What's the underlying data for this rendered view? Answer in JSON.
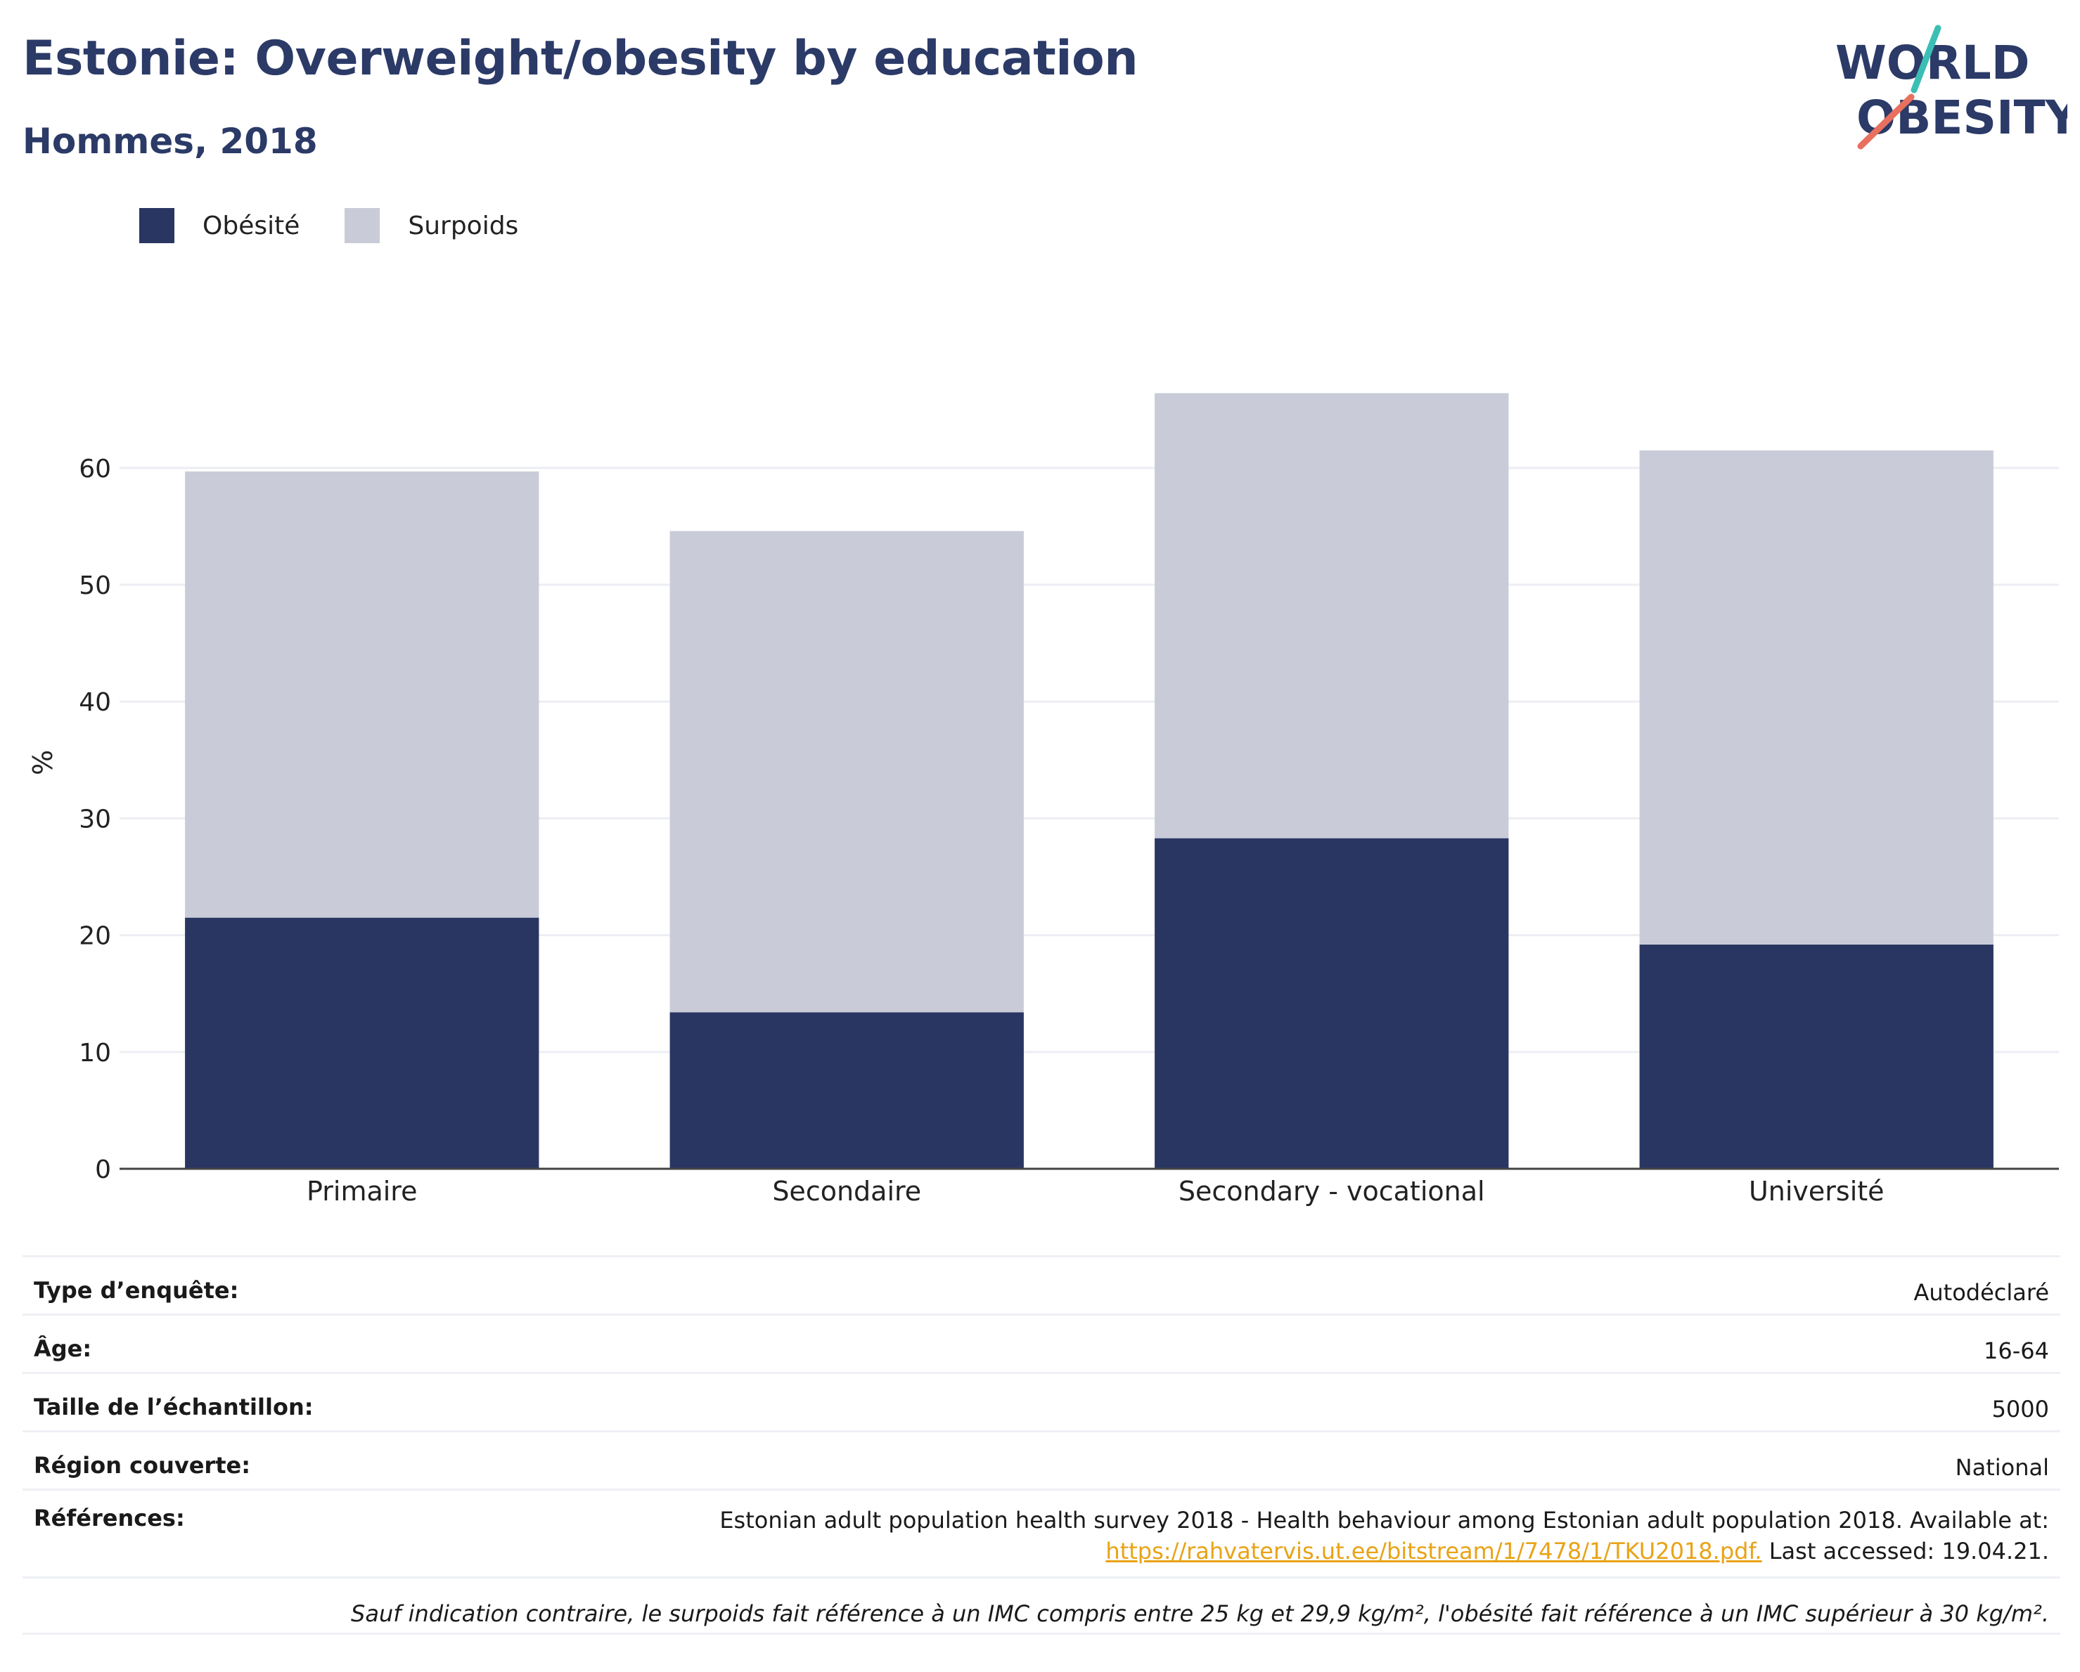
{
  "header": {
    "title": "Estonie: Overweight/obesity by education",
    "subtitle": "Hommes, 2018"
  },
  "logo": {
    "line1": "WORLD",
    "line2": "OBESITY"
  },
  "colors": {
    "obesity": "#2a3662",
    "overweight": "#c9ccd8",
    "title": "#2b3a67",
    "link": "#e8a317"
  },
  "chart_data": {
    "type": "bar",
    "stacked": true,
    "categories": [
      "Primaire",
      "Secondaire",
      "Secondary - vocational",
      "Université"
    ],
    "series": [
      {
        "name": "Obésité",
        "values": [
          21.5,
          13.4,
          28.3,
          19.2
        ]
      },
      {
        "name": "Surpoids",
        "values": [
          38.2,
          41.2,
          38.1,
          42.3
        ]
      }
    ],
    "ylabel": "%",
    "ylim": [
      0,
      70
    ],
    "yticks": [
      0,
      10,
      20,
      30,
      40,
      50,
      60
    ],
    "grid": true,
    "legend": "top-left"
  },
  "info": [
    {
      "key": "Type d’enquête:",
      "value": "Autodéclaré"
    },
    {
      "key": "Âge:",
      "value": "16-64"
    },
    {
      "key": "Taille de l’échantillon:",
      "value": "5000"
    },
    {
      "key": "Région couverte:",
      "value": "National"
    }
  ],
  "references": {
    "key": "Références:",
    "line1": "Estonian adult population health survey 2018 - Health behaviour among Estonian adult population 2018. Available at:",
    "link": "https://rahvatervis.ut.ee/bitstream/1/7478/1/TKU2018.pdf.",
    "after_link": " Last accessed: 19.04.21."
  },
  "footnote": "Sauf indication contraire, le surpoids fait référence à un IMC compris entre 25 kg et 29,9 kg/m², l'obésité fait référence à un IMC supérieur à 30 kg/m²."
}
